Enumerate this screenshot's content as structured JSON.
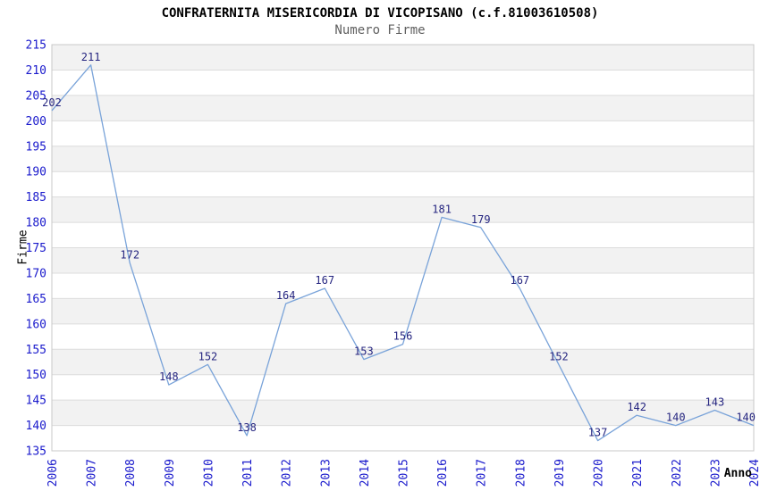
{
  "title": "CONFRATERNITA MISERICORDIA DI VICOPISANO (c.f.81003610508)",
  "subtitle": "Numero Firme",
  "chart_data": {
    "type": "line",
    "title": "CONFRATERNITA MISERICORDIA DI VICOPISANO (c.f.81003610508)",
    "subtitle": "Numero Firme",
    "xlabel": "Anno",
    "ylabel": "Firme",
    "x": [
      2006,
      2007,
      2008,
      2009,
      2010,
      2011,
      2012,
      2013,
      2014,
      2015,
      2016,
      2017,
      2018,
      2019,
      2020,
      2021,
      2022,
      2023,
      2024
    ],
    "series": [
      {
        "name": "Numero Firme",
        "values": [
          202,
          211,
          172,
          148,
          152,
          138,
          164,
          167,
          153,
          156,
          181,
          179,
          167,
          152,
          137,
          142,
          140,
          143,
          140
        ]
      }
    ],
    "ylim": [
      135,
      215
    ],
    "ytick_step": 5,
    "grid": "horizontal",
    "legend_position": "none",
    "banded_background": true,
    "data_labels_visible": true,
    "colors": {
      "line": "#79a3d9",
      "data_label": "#252580",
      "tick_label": "#1a1acc",
      "axis_title": "#000000",
      "subtitle": "#606060",
      "band": "#f2f2f2",
      "gridline": "#dcdcdc",
      "plot_border": "#c8c8c8",
      "background": "#ffffff"
    }
  }
}
